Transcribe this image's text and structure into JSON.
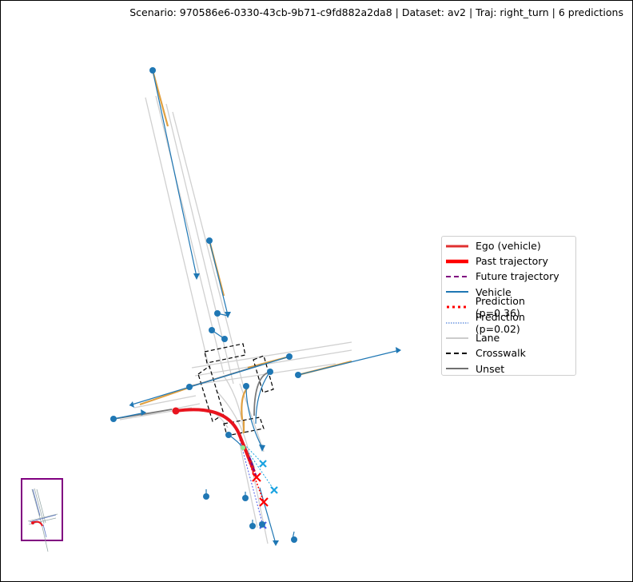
{
  "title": "Scenario: 970586e6-0330-43cb-9b71-c9fd882a2da8 | Dataset: av2 | Traj: right_turn | 6 predictions",
  "legend": [
    {
      "label": "Ego (vehicle)",
      "color": "#e03030",
      "style": "solid-medium"
    },
    {
      "label": "Past trajectory",
      "color": "#ff0000",
      "style": "solid-thick"
    },
    {
      "label": "Future trajectory",
      "color": "#800080",
      "style": "dashed"
    },
    {
      "label": "Vehicle",
      "color": "#1f77b4",
      "style": "solid"
    },
    {
      "label": "Prediction (p=0.36)",
      "color": "#ff0000",
      "style": "dotted-thick"
    },
    {
      "label": "Prediction (p=0.02)",
      "color": "#1f5fd0",
      "style": "dotted-thin"
    },
    {
      "label": "Lane",
      "color": "#cccccc",
      "style": "solid"
    },
    {
      "label": "Crosswalk",
      "color": "#000000",
      "style": "dashed"
    },
    {
      "label": "Unset",
      "color": "#707070",
      "style": "solid"
    }
  ],
  "colors": {
    "ego": "#e8141e",
    "vehicle": "#1f77b4",
    "lane": "#d0d0d0",
    "lane_highlight": "#e0a040",
    "crosswalk": "#000000",
    "unset": "#7a7a7a",
    "pred_cyan": "#1aa3e0",
    "pred_blue": "#4a5ae8",
    "minimap_border": "#800080"
  }
}
